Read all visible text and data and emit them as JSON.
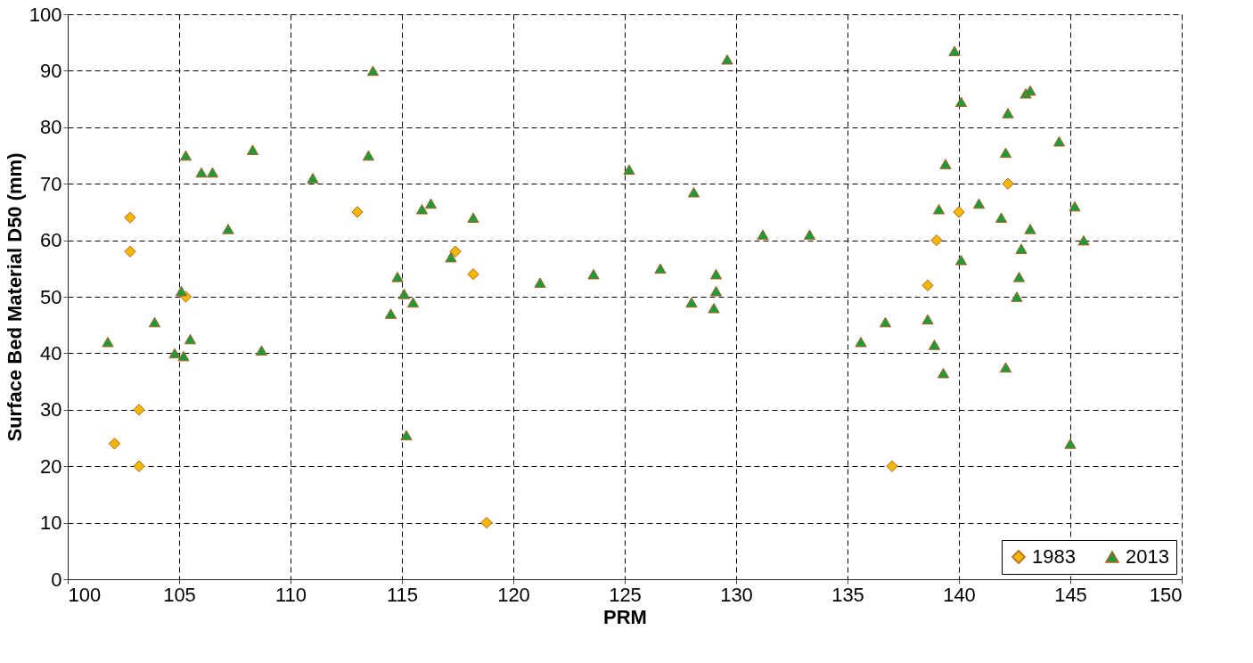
{
  "chart_data": {
    "type": "scatter",
    "xlabel": "PRM",
    "ylabel": "Surface Bed Material D50 (mm)",
    "xlim": [
      100,
      150
    ],
    "xticks": [
      100,
      105,
      110,
      115,
      120,
      125,
      130,
      135,
      140,
      145,
      150
    ],
    "ylim": [
      0,
      100
    ],
    "yticks": [
      0,
      10,
      20,
      30,
      40,
      50,
      60,
      70,
      80,
      90,
      100
    ],
    "grid": true,
    "legend": "bottom right",
    "series": [
      {
        "name": "1983",
        "color": "#f5b800",
        "marker": "diamond",
        "x": [
          102.1,
          102.8,
          102.8,
          103.2,
          103.2,
          105.3,
          113,
          117.4,
          118.2,
          118.8,
          137,
          138.6,
          139,
          140,
          142.2
        ],
        "values": [
          24,
          64,
          58,
          30,
          20,
          50,
          65,
          58,
          54,
          10,
          20,
          52,
          60,
          65,
          70
        ]
      },
      {
        "name": "2013",
        "color": "#1f9a3a",
        "marker": "triangle",
        "x": [
          101.8,
          103.9,
          104.8,
          105.1,
          105.2,
          105.3,
          105.5,
          106,
          106.5,
          107.2,
          108.3,
          108.7,
          111,
          113.5,
          113.7,
          114.5,
          114.8,
          115.1,
          115.2,
          115.5,
          115.9,
          116.3,
          117.2,
          118.2,
          121.2,
          123.6,
          125.2,
          126.6,
          128,
          128.1,
          129,
          129.1,
          129.1,
          129.6,
          131.2,
          133.3,
          135.6,
          136.7,
          138.6,
          138.9,
          139.1,
          139.3,
          139.4,
          139.8,
          140.1,
          140.1,
          140.9,
          141.9,
          142.1,
          142.1,
          142.2,
          142.6,
          142.7,
          142.8,
          143,
          143.2,
          143.2,
          144.5,
          145,
          145.2,
          145.6
        ],
        "values": [
          42,
          45.5,
          40,
          51,
          39.5,
          75,
          42.5,
          72,
          72,
          62,
          76,
          40.5,
          71,
          75,
          90,
          47,
          53.5,
          50.5,
          25.5,
          49,
          65.5,
          66.5,
          57,
          64,
          52.5,
          54,
          72.5,
          55,
          49,
          68.5,
          48,
          51,
          54,
          92,
          61,
          61,
          42,
          45.5,
          46,
          41.5,
          65.5,
          36.5,
          73.5,
          93.5,
          84.5,
          56.5,
          66.5,
          64,
          37.5,
          75.5,
          82.5,
          50,
          53.5,
          58.5,
          86,
          86.5,
          62,
          77.5,
          24,
          66,
          60
        ]
      }
    ]
  }
}
